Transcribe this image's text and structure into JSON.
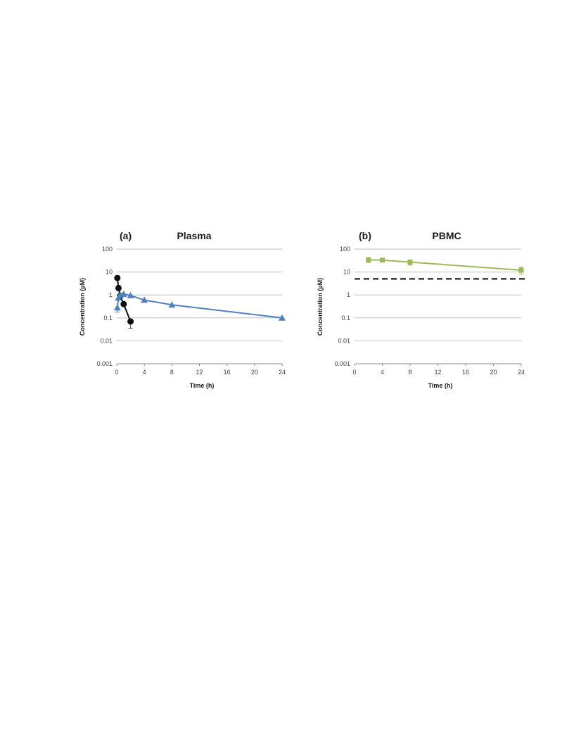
{
  "colors": {
    "black_series": "#0d0d0d",
    "blue_series": "#4f81bd",
    "green_series": "#9bbb59",
    "gridline": "#bfbfbf",
    "threshold": "#000000"
  },
  "chart_data": [
    {
      "type": "line",
      "panel_label": "(a)",
      "title": "Plasma",
      "xlabel": "Time (h)",
      "ylabel": "Concentration (µM)",
      "xlim": [
        0,
        24
      ],
      "x_ticks": [
        "0",
        "4",
        "8",
        "12",
        "16",
        "20",
        "24"
      ],
      "ylim": [
        0.001,
        100
      ],
      "y_scale": "log",
      "y_ticks": [
        "0.001",
        "0.01",
        "0.1",
        "1",
        "10",
        "100"
      ],
      "grid": "horizontal",
      "series": [
        {
          "marker": "circle",
          "color": "#0d0d0d",
          "x": [
            0.083,
            0.25,
            0.5,
            1,
            2
          ],
          "y": [
            5.5,
            2.0,
            0.9,
            0.4,
            0.07
          ],
          "y_err_low": [
            null,
            null,
            null,
            null,
            0.035
          ]
        },
        {
          "marker": "triangle",
          "color": "#4f81bd",
          "x": [
            0.083,
            0.25,
            0.5,
            1,
            2,
            4,
            8,
            24
          ],
          "y": [
            0.28,
            0.75,
            1.0,
            1.1,
            0.95,
            0.6,
            0.37,
            0.1
          ],
          "y_err_low": [
            0.18,
            null,
            null,
            null,
            null,
            null,
            null,
            null
          ]
        }
      ]
    },
    {
      "type": "line",
      "panel_label": "(b)",
      "title": "PBMC",
      "xlabel": "Time (h)",
      "ylabel": "Concentration (µM)",
      "xlim": [
        0,
        24
      ],
      "x_ticks": [
        "0",
        "4",
        "8",
        "12",
        "16",
        "20",
        "24"
      ],
      "ylim": [
        0.001,
        100
      ],
      "y_scale": "log",
      "y_ticks": [
        "0.001",
        "0.01",
        "0.1",
        "1",
        "10",
        "100"
      ],
      "grid": "horizontal",
      "threshold_line": {
        "y": 5,
        "style": "dashed",
        "color": "#000000"
      },
      "series": [
        {
          "marker": "square",
          "color": "#9bbb59",
          "x": [
            2,
            4,
            8,
            24
          ],
          "y": [
            34,
            33,
            27,
            12
          ],
          "y_err_low": [
            26,
            28,
            20,
            8
          ],
          "y_err_high": [
            42,
            38,
            34,
            16
          ]
        }
      ]
    }
  ]
}
